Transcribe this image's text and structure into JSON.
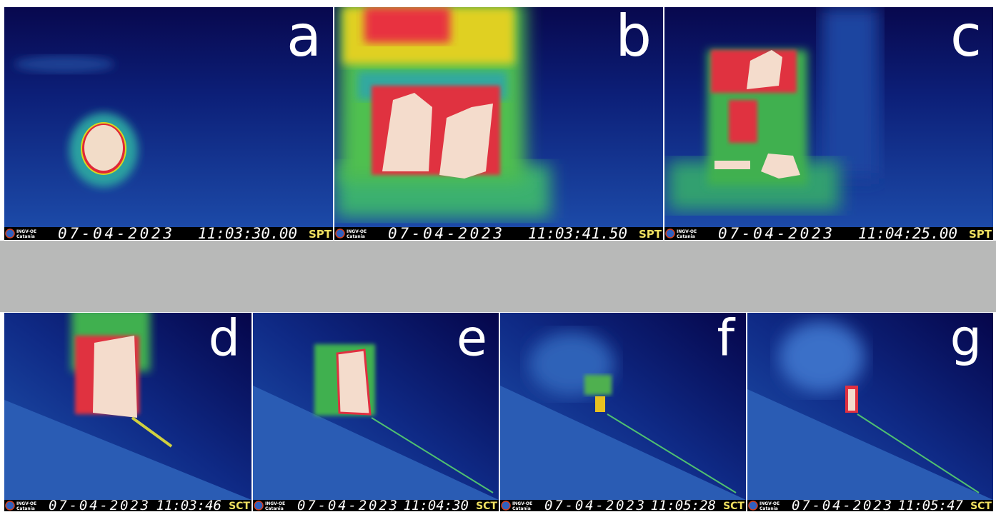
{
  "panels": [
    {
      "label": "a",
      "logo": [
        "INGV-OE",
        "Catania"
      ],
      "date": "07-04-2023",
      "time": "11:03:30.00",
      "station": "SPT"
    },
    {
      "label": "b",
      "logo": [
        "INGV-OE",
        "Catania"
      ],
      "date": "07-04-2023",
      "time": "11:03:41.50",
      "station": "SPT"
    },
    {
      "label": "c",
      "logo": [
        "INGV-OE",
        "Catania"
      ],
      "date": "07-04-2023",
      "time": "11:04:25.00",
      "station": "SPT"
    },
    {
      "label": "d",
      "logo": [
        "INGV-OE",
        "Catania"
      ],
      "date": "07-04-2023",
      "time": "11:03:46",
      "station": "SCT"
    },
    {
      "label": "e",
      "logo": [
        "INGV-OE",
        "Catania"
      ],
      "date": "07-04-2023",
      "time": "11:04:30",
      "station": "SCT"
    },
    {
      "label": "f",
      "logo": [
        "INGV-OE",
        "Catania"
      ],
      "date": "07-04-2023",
      "time": "11:05:28",
      "station": "SCT"
    },
    {
      "label": "g",
      "logo": [
        "INGV-OE",
        "Catania"
      ],
      "date": "07-04-2023",
      "time": "11:05:47",
      "station": "SCT"
    }
  ]
}
